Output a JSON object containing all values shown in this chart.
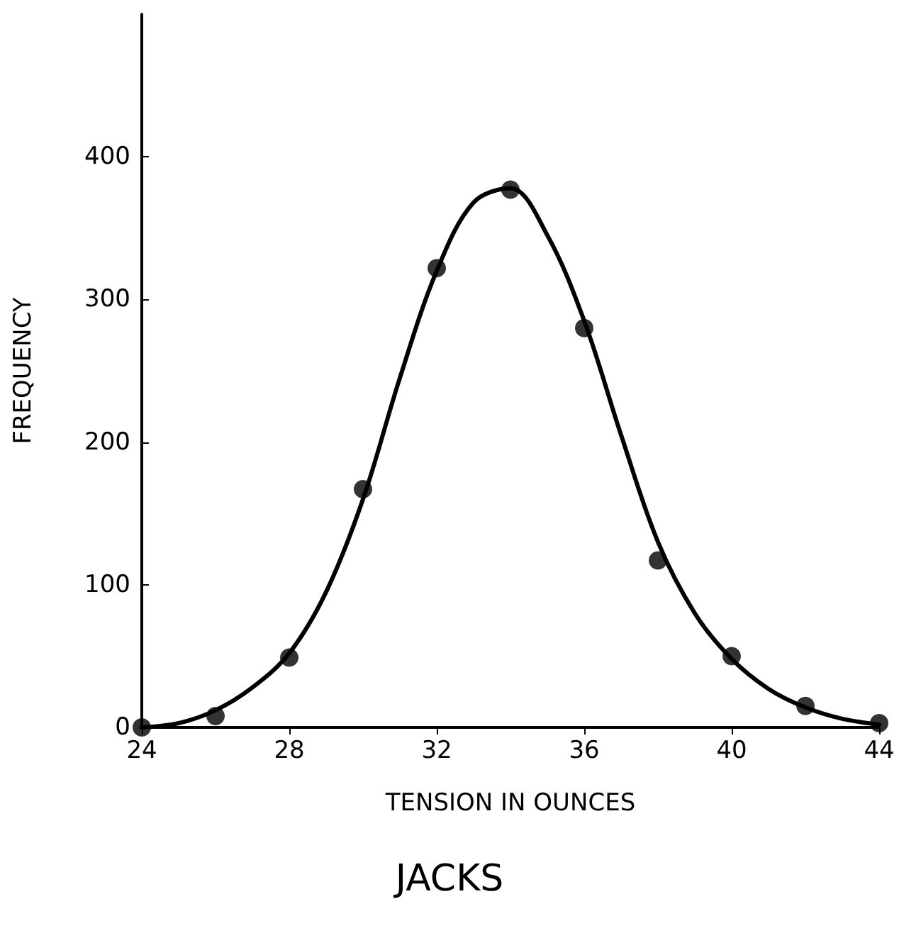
{
  "chart_data": {
    "type": "scatter",
    "title": "JACKS",
    "xlabel": "TENSION IN OUNCES",
    "ylabel": "FREQUENCY",
    "xlim": [
      24,
      44
    ],
    "xticks": [
      24,
      28,
      32,
      36,
      40,
      44
    ],
    "ylim": [
      0,
      500
    ],
    "yticks": [
      0,
      100,
      200,
      300,
      400
    ],
    "grid": false,
    "series": [
      {
        "color": "#000000",
        "marker": "circle",
        "x": [
          24,
          26,
          28,
          30,
          32,
          34,
          36,
          38,
          40,
          42,
          44
        ],
        "values": [
          0,
          8,
          49,
          167,
          322,
          377,
          280,
          117,
          50,
          15,
          3
        ]
      },
      {
        "type": "line",
        "color": "#000000",
        "marker": "none",
        "line_style": "solid",
        "x": [
          24,
          25,
          26,
          27,
          28,
          29,
          30,
          31,
          32,
          33,
          34,
          35,
          36,
          37,
          38,
          39,
          40,
          41,
          42,
          43,
          44
        ],
        "values": [
          0,
          3,
          12,
          28,
          52,
          95,
          160,
          245,
          320,
          368,
          378,
          345,
          285,
          205,
          130,
          80,
          48,
          27,
          14,
          6,
          2
        ]
      }
    ]
  }
}
